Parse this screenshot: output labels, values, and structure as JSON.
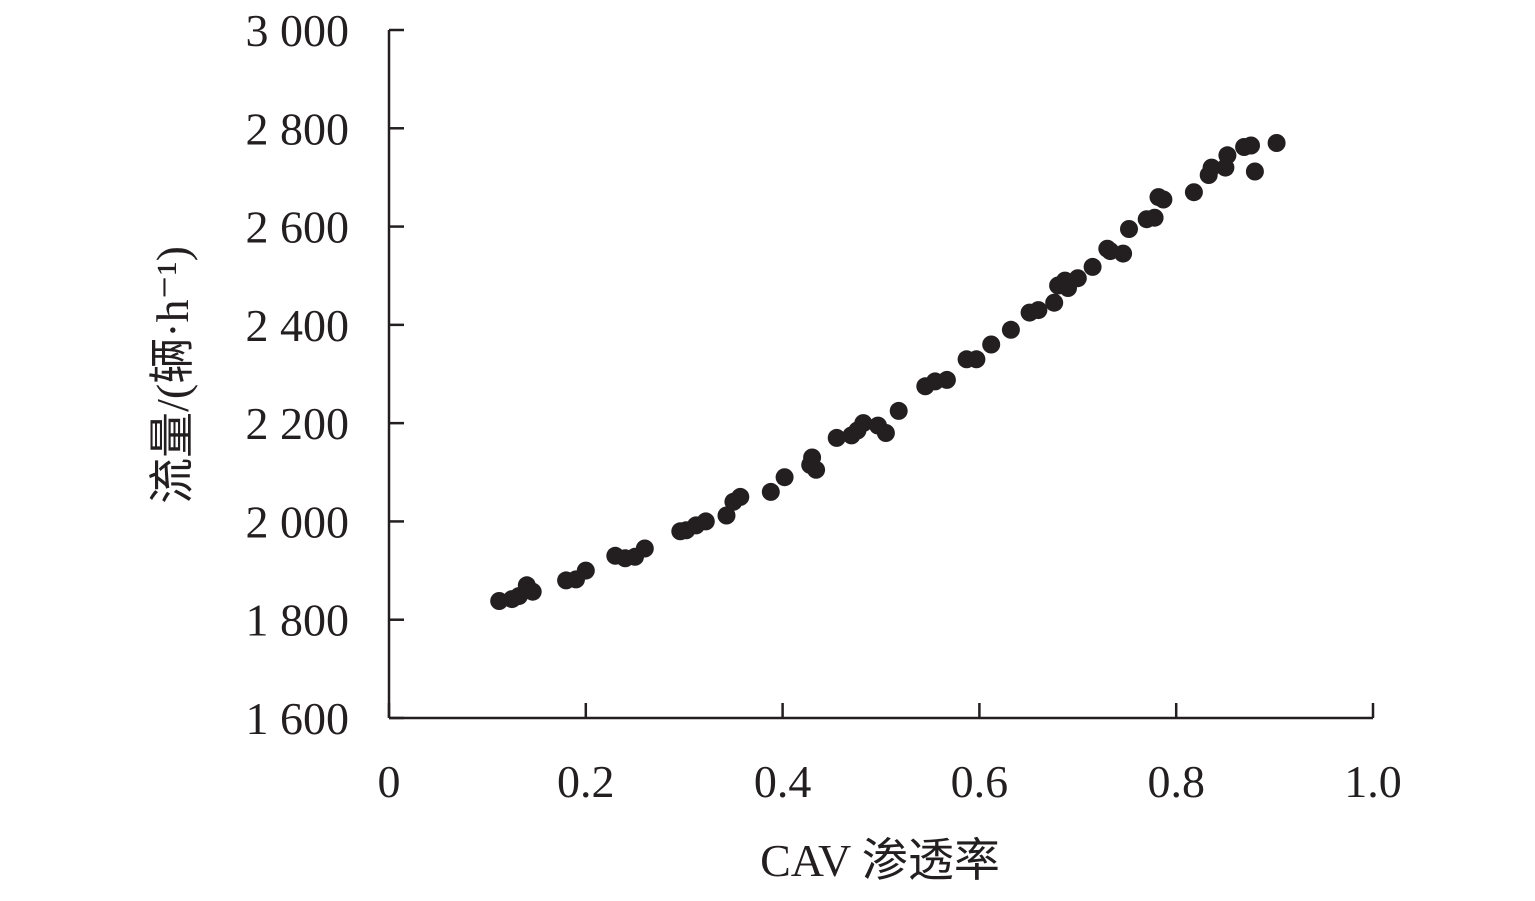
{
  "chart_data": {
    "type": "scatter",
    "title": "",
    "xlabel": "CAV 渗透率",
    "ylabel": "流量/(辆·h⁻¹)",
    "xlim": [
      0,
      1.0
    ],
    "ylim": [
      1600,
      3000
    ],
    "xticks": [
      0,
      0.2,
      0.4,
      0.6,
      0.8,
      1.0
    ],
    "xtick_labels": [
      "0",
      "0.2",
      "0.4",
      "0.6",
      "0.8",
      "1.0"
    ],
    "yticks": [
      1600,
      1800,
      2000,
      2200,
      2400,
      2600,
      2800,
      3000
    ],
    "ytick_labels": [
      "1 600",
      "1 800",
      "2 000",
      "2 200",
      "2 400",
      "2 600",
      "2 800",
      "3 000"
    ],
    "grid": false,
    "legend": "none",
    "marker_color": "#231f20",
    "series": [
      {
        "points": [
          [
            0.112,
            1838
          ],
          [
            0.125,
            1842
          ],
          [
            0.132,
            1848
          ],
          [
            0.14,
            1870
          ],
          [
            0.146,
            1857
          ],
          [
            0.18,
            1880
          ],
          [
            0.19,
            1882
          ],
          [
            0.2,
            1900
          ],
          [
            0.23,
            1930
          ],
          [
            0.24,
            1925
          ],
          [
            0.25,
            1928
          ],
          [
            0.26,
            1945
          ],
          [
            0.296,
            1980
          ],
          [
            0.302,
            1982
          ],
          [
            0.312,
            1992
          ],
          [
            0.322,
            2000
          ],
          [
            0.343,
            2012
          ],
          [
            0.35,
            2040
          ],
          [
            0.357,
            2050
          ],
          [
            0.388,
            2060
          ],
          [
            0.402,
            2090
          ],
          [
            0.428,
            2115
          ],
          [
            0.43,
            2130
          ],
          [
            0.434,
            2105
          ],
          [
            0.455,
            2170
          ],
          [
            0.47,
            2175
          ],
          [
            0.476,
            2185
          ],
          [
            0.482,
            2200
          ],
          [
            0.497,
            2195
          ],
          [
            0.505,
            2180
          ],
          [
            0.518,
            2225
          ],
          [
            0.545,
            2275
          ],
          [
            0.555,
            2285
          ],
          [
            0.567,
            2288
          ],
          [
            0.587,
            2330
          ],
          [
            0.597,
            2330
          ],
          [
            0.612,
            2360
          ],
          [
            0.632,
            2390
          ],
          [
            0.651,
            2425
          ],
          [
            0.66,
            2430
          ],
          [
            0.676,
            2445
          ],
          [
            0.68,
            2480
          ],
          [
            0.687,
            2490
          ],
          [
            0.69,
            2475
          ],
          [
            0.7,
            2495
          ],
          [
            0.715,
            2518
          ],
          [
            0.73,
            2555
          ],
          [
            0.733,
            2550
          ],
          [
            0.746,
            2545
          ],
          [
            0.752,
            2595
          ],
          [
            0.77,
            2615
          ],
          [
            0.778,
            2618
          ],
          [
            0.782,
            2660
          ],
          [
            0.787,
            2655
          ],
          [
            0.818,
            2670
          ],
          [
            0.833,
            2705
          ],
          [
            0.836,
            2720
          ],
          [
            0.85,
            2720
          ],
          [
            0.852,
            2745
          ],
          [
            0.869,
            2762
          ],
          [
            0.876,
            2765
          ],
          [
            0.88,
            2712
          ],
          [
            0.902,
            2770
          ]
        ]
      }
    ]
  }
}
